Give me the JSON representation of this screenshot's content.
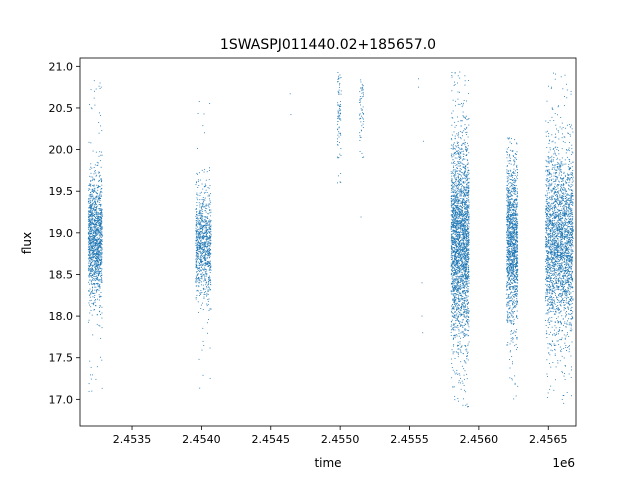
{
  "chart_data": {
    "type": "scatter",
    "title": "1SWASPJ011440.02+185657.0",
    "xlabel": "time",
    "ylabel": "flux",
    "x_offset_label": "1e6",
    "xlim": [
      2453125,
      2456700
    ],
    "ylim": [
      16.68,
      21.1
    ],
    "x_ticks": [
      2453500,
      2454000,
      2454500,
      2455000,
      2455500,
      2456000,
      2456500
    ],
    "x_tick_labels": [
      "2.4535",
      "2.4540",
      "2.4545",
      "2.4550",
      "2.4555",
      "2.4560",
      "2.4565"
    ],
    "y_ticks": [
      17.0,
      17.5,
      18.0,
      18.5,
      19.0,
      19.5,
      20.0,
      20.5,
      21.0
    ],
    "y_tick_labels": [
      "17.0",
      "17.5",
      "18.0",
      "18.5",
      "19.0",
      "19.5",
      "20.0",
      "20.5",
      "21.0"
    ],
    "grid": false,
    "marker_color": "#1f77b4",
    "observing_seasons": [
      {
        "x_start": 2453185,
        "x_end": 2453285,
        "y_center": 18.95,
        "y_spread": 0.35,
        "y_min": 16.95,
        "y_max": 20.85,
        "density": 1400
      },
      {
        "x_start": 2453960,
        "x_end": 2454070,
        "y_center": 18.85,
        "y_spread": 0.32,
        "y_min": 17.0,
        "y_max": 20.65,
        "density": 900
      },
      {
        "x_start": 2454980,
        "x_end": 2455010,
        "y_center": 20.4,
        "y_spread": 0.35,
        "y_min": 19.2,
        "y_max": 20.95,
        "density": 90
      },
      {
        "x_start": 2455140,
        "x_end": 2455170,
        "y_center": 20.5,
        "y_spread": 0.25,
        "y_min": 19.1,
        "y_max": 20.95,
        "density": 60
      },
      {
        "x_start": 2455800,
        "x_end": 2455930,
        "y_center": 18.9,
        "y_spread": 0.6,
        "y_min": 16.9,
        "y_max": 20.95,
        "density": 2600
      },
      {
        "x_start": 2456200,
        "x_end": 2456280,
        "y_center": 18.9,
        "y_spread": 0.5,
        "y_min": 16.9,
        "y_max": 20.15,
        "density": 1400
      },
      {
        "x_start": 2456480,
        "x_end": 2456680,
        "y_center": 18.9,
        "y_spread": 0.55,
        "y_min": 16.95,
        "y_max": 20.95,
        "density": 2600
      }
    ],
    "isolated_points": [
      {
        "x": 2454640,
        "y": 20.67
      },
      {
        "x": 2454645,
        "y": 20.42
      },
      {
        "x": 2455565,
        "y": 20.85
      },
      {
        "x": 2455565,
        "y": 20.75
      },
      {
        "x": 2455590,
        "y": 18.4
      },
      {
        "x": 2455590,
        "y": 18.0
      },
      {
        "x": 2455595,
        "y": 17.8
      },
      {
        "x": 2455600,
        "y": 20.1
      }
    ]
  }
}
